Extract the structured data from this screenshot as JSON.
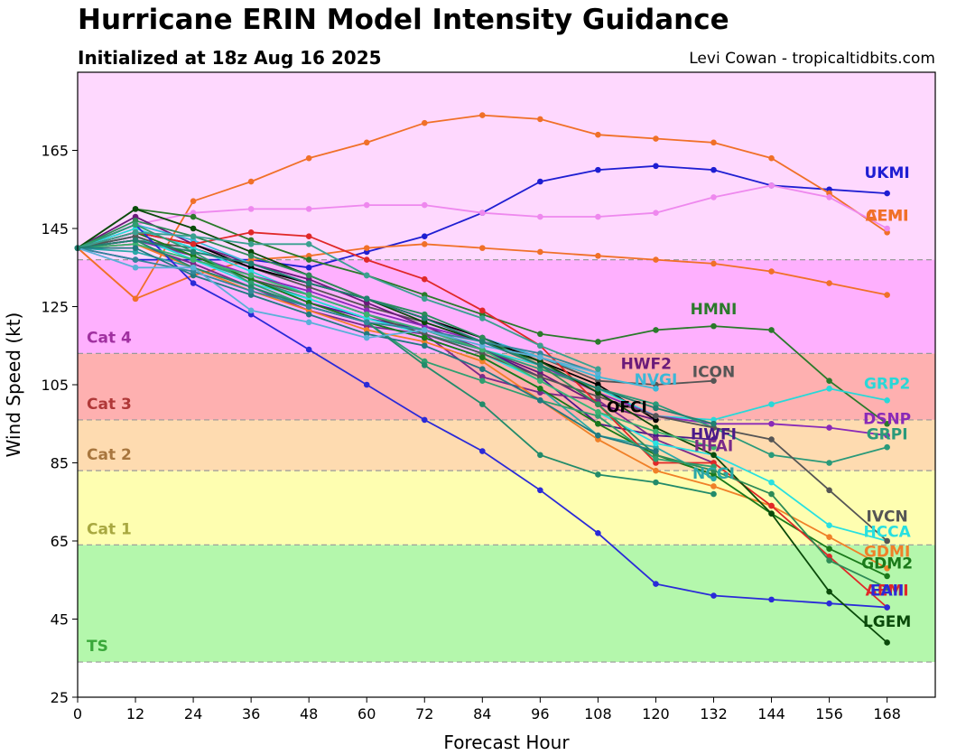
{
  "title": "Hurricane ERIN Model Intensity Guidance",
  "subtitle": "Initialized at 18z Aug 16 2025",
  "credit": "Levi Cowan - tropicaltidbits.com",
  "chart_data": {
    "type": "line",
    "title": "Hurricane ERIN Model Intensity Guidance",
    "xlabel": "Forecast Hour",
    "ylabel": "Wind Speed (kt)",
    "xlim": [
      0,
      178
    ],
    "ylim": [
      25,
      185
    ],
    "xticks": [
      0,
      12,
      24,
      36,
      48,
      60,
      72,
      84,
      96,
      108,
      120,
      132,
      144,
      156,
      168
    ],
    "yticks": [
      25,
      45,
      65,
      85,
      105,
      125,
      145,
      165
    ],
    "grid": false,
    "bands": [
      {
        "name": "TS",
        "from": 34,
        "to": 64,
        "color": "#b4f7ac",
        "label_color": "#3aa83a"
      },
      {
        "name": "Cat 1",
        "from": 64,
        "to": 83,
        "color": "#fefeb0",
        "label_color": "#a8a840"
      },
      {
        "name": "Cat 2",
        "from": 83,
        "to": 96,
        "color": "#fedbb0",
        "label_color": "#a8763e"
      },
      {
        "name": "Cat 3",
        "from": 96,
        "to": 113,
        "color": "#feb0b0",
        "label_color": "#b03838"
      },
      {
        "name": "Cat 4",
        "from": 113,
        "to": 137,
        "color": "#feb0fe",
        "label_color": "#a030a0"
      },
      {
        "name": "",
        "from": 137,
        "to": 185,
        "color": "#fed8fe",
        "label_color": "#a030a0"
      }
    ],
    "series": [
      {
        "name": "UKMI",
        "color": "#1e1ed2",
        "x": [
          0,
          12,
          24,
          36,
          48,
          60,
          72,
          84,
          96,
          108,
          120,
          132,
          144,
          156,
          168
        ],
        "y": [
          140,
          137,
          137,
          137,
          135,
          139,
          143,
          149,
          157,
          160,
          161,
          160,
          156,
          155,
          154
        ],
        "label_x": 168,
        "label_y": 158
      },
      {
        "name": "CEMI",
        "color": "#f07028",
        "x": [
          0,
          12,
          24,
          36,
          48,
          60,
          72,
          84,
          96,
          108,
          120,
          132,
          144,
          156,
          168
        ],
        "y": [
          140,
          127,
          133,
          137,
          138,
          140,
          141,
          140,
          139,
          138,
          137,
          136,
          134,
          131,
          128
        ],
        "label_x": 168,
        "label_y": 147
      },
      {
        "name": "AEMI",
        "color": "#f07028",
        "x": [
          0,
          12,
          24,
          36,
          48,
          60,
          72,
          84,
          96,
          108,
          120,
          132,
          144,
          156,
          168
        ],
        "y": [
          140,
          127,
          152,
          157,
          163,
          167,
          172,
          174,
          173,
          169,
          168,
          167,
          163,
          154,
          144
        ],
        "label_x": 168,
        "label_y": 147
      },
      {
        "name": "",
        "color": "#ee88ee",
        "x": [
          0,
          12,
          24,
          36,
          48,
          60,
          72,
          84,
          96,
          108,
          120,
          132,
          144,
          156,
          168
        ],
        "y": [
          140,
          146,
          149,
          150,
          150,
          151,
          151,
          149,
          148,
          148,
          149,
          153,
          156,
          153,
          145
        ],
        "label_x": 168,
        "label_y": 147
      },
      {
        "name": "HMNI",
        "color": "#2a7a2a",
        "x": [
          0,
          12,
          24,
          36,
          48,
          60,
          72,
          84,
          96,
          108,
          120,
          132,
          144,
          156,
          168
        ],
        "y": [
          140,
          150,
          148,
          142,
          137,
          133,
          128,
          123,
          118,
          116,
          119,
          120,
          119,
          106,
          95
        ],
        "label_x": 132,
        "label_y": 123
      },
      {
        "name": "ICON",
        "color": "#555555",
        "x": [
          0,
          12,
          24,
          36,
          48,
          60,
          72,
          84,
          96,
          108,
          120,
          132
        ],
        "y": [
          140,
          142,
          140,
          135,
          130,
          125,
          121,
          116,
          112,
          106,
          105,
          106
        ],
        "label_x": 132,
        "label_y": 107
      },
      {
        "name": "HWF2",
        "color": "#6a1a7a",
        "x": [
          0,
          12,
          24,
          36,
          48,
          60,
          72,
          84,
          96,
          108,
          120
        ],
        "y": [
          140,
          148,
          141,
          136,
          132,
          126,
          120,
          114,
          108,
          100,
          96
        ],
        "label_x": 118,
        "label_y": 109
      },
      {
        "name": "NVGI",
        "color": "#3ab8d8",
        "x": [
          0,
          12,
          24,
          36,
          48,
          60,
          72,
          84,
          96,
          108,
          120
        ],
        "y": [
          140,
          146,
          142,
          136,
          131,
          127,
          123,
          117,
          112,
          107,
          104
        ],
        "label_x": 120,
        "label_y": 105
      },
      {
        "name": "OFCI",
        "color": "#000000",
        "x": [
          0,
          12,
          24,
          36,
          48,
          60,
          72,
          84,
          96,
          108,
          120
        ],
        "y": [
          140,
          144,
          141,
          135,
          131,
          127,
          122,
          117,
          111,
          105,
          96
        ],
        "label_x": 114,
        "label_y": 98
      },
      {
        "name": "GRP2",
        "color": "#28d8d8",
        "x": [
          0,
          12,
          24,
          36,
          48,
          60,
          72,
          84,
          96,
          108,
          120,
          132,
          144,
          156,
          168
        ],
        "y": [
          140,
          145,
          140,
          134,
          128,
          123,
          119,
          114,
          110,
          104,
          97,
          96,
          100,
          104,
          101
        ],
        "label_x": 168,
        "label_y": 104
      },
      {
        "name": "DSNP",
        "color": "#8a2ab8",
        "x": [
          0,
          12,
          24,
          36,
          48,
          60,
          72,
          84,
          96,
          108,
          120,
          132,
          144,
          156,
          168
        ],
        "y": [
          140,
          142,
          138,
          133,
          129,
          124,
          120,
          116,
          110,
          103,
          97,
          95,
          95,
          94,
          92
        ],
        "label_x": 168,
        "label_y": 95
      },
      {
        "name": "GRPI",
        "color": "#2a9a7a",
        "x": [
          0,
          12,
          24,
          36,
          48,
          60,
          72,
          84,
          96,
          108,
          120,
          132,
          144,
          156,
          168
        ],
        "y": [
          140,
          143,
          137,
          132,
          127,
          122,
          118,
          114,
          109,
          104,
          100,
          94,
          87,
          85,
          89
        ],
        "label_x": 168,
        "label_y": 91
      },
      {
        "name": "HWFI",
        "color": "#4a1a8a",
        "x": [
          0,
          12,
          24,
          36,
          48,
          60,
          72,
          84,
          96,
          108,
          120,
          132
        ],
        "y": [
          140,
          143,
          138,
          132,
          126,
          122,
          119,
          114,
          107,
          95,
          92,
          91
        ],
        "label_x": 132,
        "label_y": 91
      },
      {
        "name": "HFAI",
        "color": "#7a2a8a",
        "x": [
          0,
          12,
          24,
          36,
          48,
          60,
          72,
          84,
          96,
          108,
          120,
          132
        ],
        "y": [
          140,
          141,
          136,
          130,
          124,
          120,
          118,
          107,
          103,
          101,
          91,
          85
        ],
        "label_x": 132,
        "label_y": 88
      },
      {
        "name": "NCGI",
        "color": "#2aa8a8",
        "x": [
          0,
          12,
          24,
          36,
          48,
          60,
          72,
          84,
          96,
          108,
          120,
          132
        ],
        "y": [
          140,
          139,
          135,
          130,
          125,
          121,
          117,
          112,
          104,
          92,
          89,
          81
        ],
        "label_x": 132,
        "label_y": 81
      },
      {
        "name": "HCCA",
        "color": "#28e0e0",
        "x": [
          0,
          12,
          24,
          36,
          48,
          60,
          72,
          84,
          96,
          108,
          120,
          132,
          144,
          156,
          168
        ],
        "y": [
          140,
          143,
          137,
          131,
          127,
          122,
          118,
          113,
          106,
          98,
          90,
          87,
          80,
          69,
          65
        ],
        "label_x": 168,
        "label_y": 66
      },
      {
        "name": "IVCN",
        "color": "#555555",
        "x": [
          0,
          12,
          24,
          36,
          48,
          60,
          72,
          84,
          96,
          108,
          120,
          132,
          144,
          156,
          168
        ],
        "y": [
          140,
          143,
          138,
          132,
          128,
          123,
          118,
          113,
          107,
          102,
          97,
          94,
          91,
          78,
          65
        ],
        "label_x": 168,
        "label_y": 70
      },
      {
        "name": "GDMI",
        "color": "#f08028",
        "x": [
          0,
          12,
          24,
          36,
          48,
          60,
          72,
          84,
          96,
          108,
          120,
          132,
          144,
          156,
          168
        ],
        "y": [
          140,
          141,
          135,
          129,
          124,
          119,
          116,
          111,
          101,
          91,
          83,
          79,
          74,
          66,
          58
        ],
        "label_x": 168,
        "label_y": 61
      },
      {
        "name": "GDM2",
        "color": "#1a7a1a",
        "x": [
          0,
          12,
          24,
          36,
          48,
          60,
          72,
          84,
          96,
          108,
          120,
          132,
          144,
          156,
          168
        ],
        "y": [
          140,
          144,
          138,
          132,
          126,
          121,
          117,
          112,
          104,
          95,
          87,
          82,
          72,
          63,
          56
        ],
        "label_x": 168,
        "label_y": 58
      },
      {
        "name": "AEMI",
        "color": "#e02828",
        "x": [
          0,
          12,
          24,
          36,
          48,
          60,
          72,
          84,
          96,
          108,
          120,
          132,
          144,
          156,
          168
        ],
        "y": [
          140,
          144,
          141,
          144,
          143,
          137,
          132,
          124,
          115,
          100,
          85,
          85,
          74,
          61,
          48
        ],
        "label_x": 168,
        "label_y": 51
      },
      {
        "name": "EAII",
        "color": "#2a2ad8",
        "x": [
          0,
          12,
          24,
          36,
          48,
          60,
          72,
          84,
          96,
          108,
          120,
          132,
          144,
          156,
          168
        ],
        "y": [
          140,
          146,
          131,
          123,
          114,
          105,
          96,
          88,
          78,
          67,
          54,
          51,
          50,
          49,
          48
        ],
        "label_x": 168,
        "label_y": 51
      },
      {
        "name": "LGEM",
        "color": "#0a4a0a",
        "x": [
          0,
          12,
          24,
          36,
          48,
          60,
          72,
          84,
          96,
          108,
          120,
          132,
          144,
          156,
          168
        ],
        "y": [
          140,
          150,
          145,
          139,
          133,
          127,
          121,
          116,
          111,
          103,
          94,
          87,
          72,
          52,
          39
        ],
        "label_x": 168,
        "label_y": 43
      },
      {
        "name": "",
        "color": "#2e8b57",
        "x": [
          0,
          12,
          24,
          36,
          48,
          60,
          72,
          84,
          96,
          108,
          120,
          132,
          144,
          156,
          168
        ],
        "y": [
          140,
          147,
          143,
          138,
          133,
          127,
          123,
          117,
          110,
          100,
          87,
          83,
          77,
          60,
          53
        ],
        "label_x": 168,
        "label_y": 43
      },
      {
        "name": "",
        "color": "#2f9f6f",
        "x": [
          0,
          12,
          24,
          36,
          48,
          60,
          72,
          84,
          96,
          108,
          120,
          132
        ],
        "y": [
          140,
          146,
          139,
          131,
          125,
          121,
          111,
          106,
          101,
          97,
          86,
          84
        ],
        "label_x": 132,
        "label_y": 84
      },
      {
        "name": "",
        "color": "#3cb371",
        "x": [
          0,
          12,
          24,
          36,
          48,
          60,
          72,
          84,
          96,
          108,
          120,
          132
        ],
        "y": [
          140,
          141,
          137,
          133,
          128,
          123,
          119,
          114,
          106,
          98,
          93,
          89
        ],
        "label_x": 132,
        "label_y": 89
      },
      {
        "name": "",
        "color": "#228b6a",
        "x": [
          0,
          12,
          24,
          36,
          48,
          60,
          72,
          84,
          96,
          108,
          120,
          132
        ],
        "y": [
          140,
          142,
          135,
          130,
          125,
          121,
          110,
          100,
          87,
          82,
          80,
          77
        ],
        "label_x": 132,
        "label_y": 77
      },
      {
        "name": "",
        "color": "#207a80",
        "x": [
          0,
          12,
          24,
          36,
          48,
          60,
          72,
          84,
          96,
          108,
          120
        ],
        "y": [
          140,
          140,
          133,
          128,
          123,
          118,
          115,
          109,
          101,
          92,
          88
        ],
        "label_x": 120,
        "label_y": 88
      },
      {
        "name": "",
        "color": "#338899",
        "x": [
          0,
          12,
          24,
          36,
          48,
          60,
          72,
          84,
          96,
          108
        ],
        "y": [
          140,
          137,
          134,
          129,
          125,
          121,
          119,
          116,
          113,
          108
        ],
        "label_x": 108,
        "label_y": 108
      },
      {
        "name": "",
        "color": "#5ab0d8",
        "x": [
          0,
          12,
          24,
          36,
          48,
          60,
          72,
          84,
          96,
          108
        ],
        "y": [
          140,
          135,
          135,
          124,
          121,
          117,
          119,
          115,
          112,
          108
        ],
        "label_x": 108,
        "label_y": 108
      },
      {
        "name": "",
        "color": "#3aa090",
        "x": [
          0,
          12,
          24,
          36,
          48,
          60,
          72,
          84,
          96,
          108
        ],
        "y": [
          140,
          144,
          143,
          141,
          141,
          133,
          127,
          122,
          115,
          109
        ],
        "label_x": 108,
        "label_y": 109
      },
      {
        "name": "",
        "color": "#208070",
        "x": [
          0,
          12,
          24,
          36,
          48,
          60,
          72,
          84,
          96,
          108,
          120,
          132
        ],
        "y": [
          140,
          142,
          139,
          136,
          131,
          127,
          122,
          116,
          110,
          104,
          99,
          95
        ],
        "label_x": 132,
        "label_y": 95
      }
    ]
  }
}
